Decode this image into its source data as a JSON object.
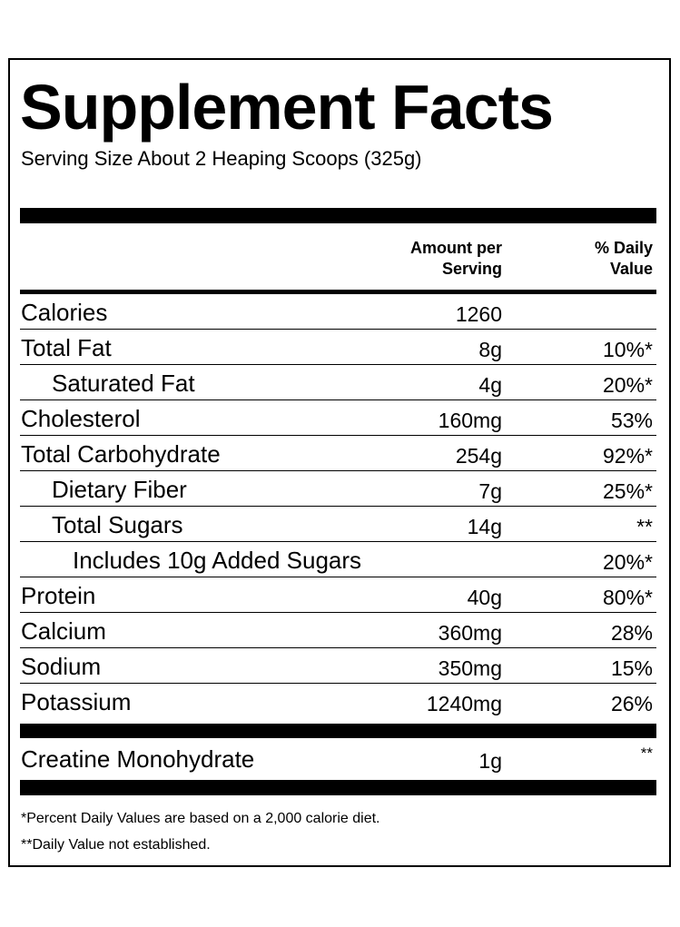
{
  "title": "Supplement Facts",
  "serving_size": "Serving Size About 2 Heaping Scoops (325g)",
  "headers": {
    "amount": [
      "Amount per",
      "Serving"
    ],
    "daily_value": [
      "% Daily",
      "Value"
    ]
  },
  "rows": [
    {
      "name": "Calories",
      "amount": "1260",
      "dv": "",
      "indent": 0
    },
    {
      "name": "Total Fat",
      "amount": "8g",
      "dv": "10%*",
      "indent": 0
    },
    {
      "name": "Saturated Fat",
      "amount": "4g",
      "dv": "20%*",
      "indent": 1
    },
    {
      "name": "Cholesterol",
      "amount": "160mg",
      "dv": "53%",
      "indent": 0
    },
    {
      "name": "Total Carbohydrate",
      "amount": "254g",
      "dv": "92%*",
      "indent": 0
    },
    {
      "name": "Dietary Fiber",
      "amount": "7g",
      "dv": "25%*",
      "indent": 1
    },
    {
      "name": "Total Sugars",
      "amount": "14g",
      "dv": "**",
      "indent": 1
    },
    {
      "name": "Includes 10g Added Sugars",
      "amount": "",
      "dv": "20%*",
      "indent": 2
    },
    {
      "name": "Protein",
      "amount": "40g",
      "dv": "80%*",
      "indent": 0
    },
    {
      "name": "Calcium",
      "amount": "360mg",
      "dv": "28%",
      "indent": 0
    },
    {
      "name": "Sodium",
      "amount": "350mg",
      "dv": "15%",
      "indent": 0
    },
    {
      "name": "Potassium",
      "amount": "1240mg",
      "dv": "26%",
      "indent": 0
    }
  ],
  "creatine": {
    "name": "Creatine Monohydrate",
    "amount": "1g",
    "dv": "**"
  },
  "footnotes": [
    "*Percent Daily Values are based on a 2,000 calorie diet.",
    "**Daily Value not established."
  ]
}
